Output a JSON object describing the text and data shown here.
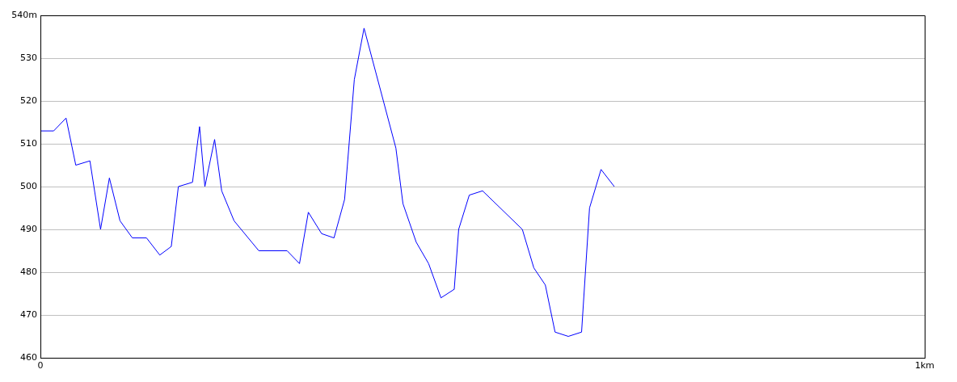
{
  "chart_data": {
    "type": "line",
    "xlim": [
      0,
      1
    ],
    "xticks": [
      0,
      {
        "value": 1,
        "label": "1km"
      }
    ],
    "ylim": [
      460,
      540
    ],
    "yticks": [
      {
        "value": 460,
        "label": "460"
      },
      470,
      480,
      490,
      500,
      510,
      520,
      530,
      {
        "value": 540,
        "label": "540m"
      }
    ],
    "grid": "y",
    "marker": "none",
    "line_style": "solid",
    "legend": false,
    "series": [
      {
        "color": "#0000ff",
        "x": [
          0,
          0.015,
          0.029,
          0.04,
          0.056,
          0.068,
          0.078,
          0.09,
          0.104,
          0.12,
          0.135,
          0.148,
          0.156,
          0.172,
          0.18,
          0.186,
          0.197,
          0.205,
          0.219,
          0.247,
          0.279,
          0.293,
          0.303,
          0.318,
          0.332,
          0.344,
          0.355,
          0.366,
          0.402,
          0.41,
          0.425,
          0.439,
          0.453,
          0.468,
          0.473,
          0.485,
          0.5,
          0.545,
          0.558,
          0.571,
          0.582,
          0.597,
          0.612,
          0.621,
          0.634,
          0.649
        ],
        "values": [
          513,
          513,
          516,
          505,
          506,
          490,
          502,
          492,
          488,
          488,
          484,
          486,
          500,
          501,
          514,
          500,
          511,
          499,
          492,
          485,
          485,
          482,
          494,
          489,
          488,
          497,
          525,
          537,
          509,
          496,
          487,
          482,
          474,
          476,
          490,
          498,
          499,
          490,
          481,
          477,
          466,
          465,
          466,
          495,
          504,
          500
        ]
      }
    ]
  }
}
